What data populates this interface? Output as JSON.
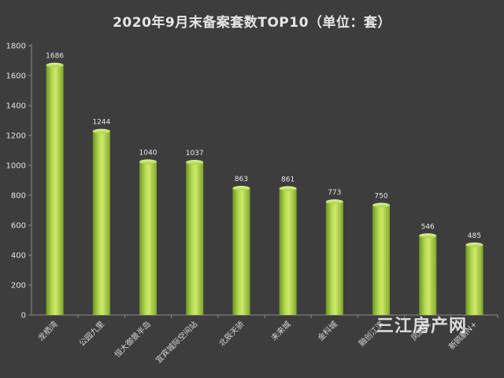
{
  "chart_data": {
    "type": "bar",
    "title": "2020年9月末备案套数TOP10（单位：套）",
    "categories": [
      "龙栖湾",
      "公园九里",
      "恒大御景半岛",
      "宜宾城际空间站",
      "北辰天骄",
      "未来城",
      "金科城",
      "融创江滨",
      "凤凰城",
      "新鸥鹏N+"
    ],
    "values": [
      1686,
      1244,
      1040,
      1037,
      863,
      861,
      773,
      750,
      546,
      485
    ],
    "ylim": [
      0,
      1800
    ],
    "yticks": [
      0,
      200,
      400,
      600,
      800,
      1000,
      1200,
      1400,
      1600,
      1800
    ],
    "xlabel": "",
    "ylabel": "",
    "grid": false,
    "legend": "none",
    "colors": {
      "background": "#3d3d3d",
      "bar_light": "#cfe86a",
      "bar_mid": "#98c23c",
      "bar_dark": "#6f9424",
      "axis": "#8a8a8a",
      "text": "#e4e4e4"
    }
  },
  "watermark": "三江房产网"
}
